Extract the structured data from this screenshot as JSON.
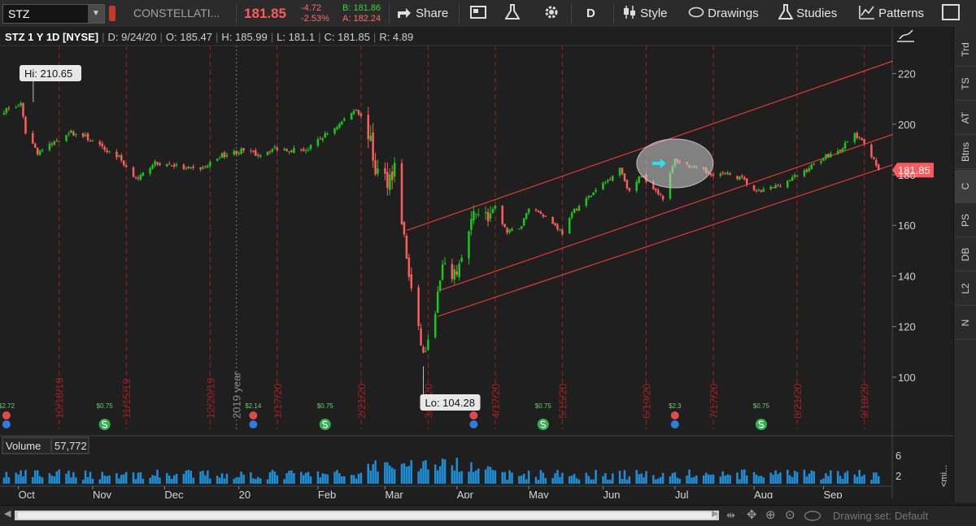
{
  "toolbar": {
    "symbol": "STZ",
    "description": "CONSTELLATI...",
    "last_price": "181.85",
    "change": "-4.72",
    "change_pct": "-2.53%",
    "bid": "B: 181.86",
    "ask": "A: 182.24",
    "share_label": "Share",
    "period_label": "D",
    "style_label": "Style",
    "drawings_label": "Drawings",
    "studies_label": "Studies",
    "patterns_label": "Patterns"
  },
  "colors": {
    "up": "#19c819",
    "down": "#ff5c5c",
    "channel": "#e53935",
    "grid_v": "#9b2020",
    "volume": "#1e8fd6",
    "background": "#1f1f1f"
  },
  "chart_data": {
    "type": "candlestick",
    "header": {
      "title": "STZ 1 Y 1D [NYSE]",
      "date": "D: 9/24/20",
      "open": "O: 185.47",
      "high": "H: 185.99",
      "low": "L: 181.1",
      "close": "C: 181.85",
      "range": "R: 4.89"
    },
    "ylim": [
      90,
      225
    ],
    "y_ticks": [
      "100",
      "120",
      "140",
      "160",
      "180",
      "200",
      "220"
    ],
    "x_months": [
      {
        "label": "Oct",
        "date": "2019-10-01"
      },
      {
        "label": "Nov",
        "date": "2019-11-01"
      },
      {
        "label": "Dec",
        "date": "2019-12-01"
      },
      {
        "label": "20",
        "date": "2020-01-01"
      },
      {
        "label": "Feb",
        "date": "2020-02-03"
      },
      {
        "label": "Mar",
        "date": "2020-03-02"
      },
      {
        "label": "Apr",
        "date": "2020-04-01"
      },
      {
        "label": "May",
        "date": "2020-05-01"
      },
      {
        "label": "Jun",
        "date": "2020-06-01"
      },
      {
        "label": "Jul",
        "date": "2020-07-01"
      },
      {
        "label": "Aug",
        "date": "2020-08-03"
      },
      {
        "label": "Sep",
        "date": "2020-09-01"
      }
    ],
    "date_markers": [
      {
        "label": "10/18/19",
        "date": "2019-10-18"
      },
      {
        "label": "11/15/19",
        "date": "2019-11-15"
      },
      {
        "label": "12/20/19",
        "date": "2019-12-20"
      },
      {
        "label": "1/17/20",
        "date": "2020-01-17"
      },
      {
        "label": "2/21/20",
        "date": "2020-02-21"
      },
      {
        "label": "3/20/20",
        "date": "2020-03-20"
      },
      {
        "label": "4/17/20",
        "date": "2020-04-17"
      },
      {
        "label": "5/15/20",
        "date": "2020-05-15"
      },
      {
        "label": "6/19/20",
        "date": "2020-06-19"
      },
      {
        "label": "7/17/20",
        "date": "2020-07-17"
      },
      {
        "label": "8/21/20",
        "date": "2020-08-21"
      },
      {
        "label": "9/18/20",
        "date": "2020-09-18"
      }
    ],
    "year_marker": {
      "label": "2019 year",
      "date": "2019-12-31"
    },
    "hi_label": {
      "text": "Hi: 210.65",
      "date": "2019-09-27",
      "value": 210.65
    },
    "lo_label": {
      "text": "Lo: 104.28",
      "date": "2020-03-18",
      "value": 104.28
    },
    "last_price_label": "181.85",
    "close_series": [
      [
        "2019-09-25",
        205.5
      ],
      [
        "2019-10-02",
        207.5
      ],
      [
        "2019-10-04",
        197
      ],
      [
        "2019-10-09",
        189
      ],
      [
        "2019-10-15",
        192
      ],
      [
        "2019-10-22",
        197
      ],
      [
        "2019-10-29",
        195
      ],
      [
        "2019-11-05",
        190.5
      ],
      [
        "2019-11-12",
        187
      ],
      [
        "2019-11-15",
        183
      ],
      [
        "2019-11-20",
        178
      ],
      [
        "2019-11-26",
        184.5
      ],
      [
        "2019-12-04",
        184
      ],
      [
        "2019-12-11",
        182
      ],
      [
        "2019-12-18",
        183
      ],
      [
        "2019-12-24",
        187.5
      ],
      [
        "2020-01-02",
        189.5
      ],
      [
        "2020-01-09",
        188
      ],
      [
        "2020-01-16",
        190.5
      ],
      [
        "2020-01-23",
        190
      ],
      [
        "2020-01-30",
        190
      ],
      [
        "2020-02-05",
        195
      ],
      [
        "2020-02-12",
        200
      ],
      [
        "2020-02-19",
        206.5
      ],
      [
        "2020-02-24",
        197
      ],
      [
        "2020-02-27",
        182
      ],
      [
        "2020-03-03",
        178
      ],
      [
        "2020-03-06",
        183
      ],
      [
        "2020-03-09",
        162
      ],
      [
        "2020-03-12",
        140
      ],
      [
        "2020-03-16",
        118
      ],
      [
        "2020-03-18",
        109
      ],
      [
        "2020-03-20",
        113
      ],
      [
        "2020-03-24",
        132
      ],
      [
        "2020-03-26",
        143
      ],
      [
        "2020-03-31",
        140
      ],
      [
        "2020-04-03",
        147
      ],
      [
        "2020-04-07",
        160
      ],
      [
        "2020-04-09",
        167
      ],
      [
        "2020-04-14",
        163
      ],
      [
        "2020-04-17",
        167
      ],
      [
        "2020-04-22",
        157
      ],
      [
        "2020-04-28",
        160
      ],
      [
        "2020-05-01",
        167
      ],
      [
        "2020-05-06",
        165
      ],
      [
        "2020-05-12",
        160
      ],
      [
        "2020-05-15",
        157
      ],
      [
        "2020-05-20",
        166
      ],
      [
        "2020-05-27",
        172
      ],
      [
        "2020-06-03",
        178
      ],
      [
        "2020-06-08",
        183
      ],
      [
        "2020-06-12",
        173
      ],
      [
        "2020-06-17",
        180
      ],
      [
        "2020-06-22",
        175
      ],
      [
        "2020-06-26",
        171
      ],
      [
        "2020-07-01",
        186
      ],
      [
        "2020-07-07",
        183.5
      ],
      [
        "2020-07-14",
        181
      ],
      [
        "2020-07-17",
        180.5
      ],
      [
        "2020-07-24",
        180
      ],
      [
        "2020-07-29",
        178.5
      ],
      [
        "2020-08-04",
        173
      ],
      [
        "2020-08-11",
        175
      ],
      [
        "2020-08-18",
        178
      ],
      [
        "2020-08-25",
        182
      ],
      [
        "2020-09-01",
        187
      ],
      [
        "2020-09-08",
        190
      ],
      [
        "2020-09-14",
        196
      ],
      [
        "2020-09-18",
        192
      ],
      [
        "2020-09-22",
        186.5
      ],
      [
        "2020-09-24",
        181.85
      ]
    ],
    "channel_lines": [
      {
        "from": [
          "2020-03-11",
          158
        ],
        "to": [
          "2020-09-30",
          225
        ]
      },
      {
        "from": [
          "2020-03-24",
          134
        ],
        "to": [
          "2020-09-30",
          196
        ]
      },
      {
        "from": [
          "2020-03-24",
          124
        ],
        "to": [
          "2020-09-30",
          184
        ]
      }
    ],
    "highlight": {
      "date": "2020-07-01",
      "value": 184.5
    },
    "events": [
      {
        "date": "2019-09-26",
        "text": "$2.72",
        "kind": "earnings"
      },
      {
        "date": "2019-11-06",
        "text": "$0.75",
        "kind": "dividend"
      },
      {
        "date": "2020-01-07",
        "text": "$2.14",
        "kind": "earnings"
      },
      {
        "date": "2020-02-06",
        "text": "$0.75",
        "kind": "dividend"
      },
      {
        "date": "2020-04-08",
        "text": "",
        "kind": "earnings"
      },
      {
        "date": "2020-05-07",
        "text": "$0.75",
        "kind": "dividend"
      },
      {
        "date": "2020-07-01",
        "text": "$2.3",
        "kind": "earnings"
      },
      {
        "date": "2020-08-06",
        "text": "$0.75",
        "kind": "dividend"
      }
    ],
    "volume": {
      "label": "Volume",
      "value": "57,772",
      "ticks": [
        "2",
        "6"
      ],
      "side_label": "<mi..."
    }
  },
  "right_tabs": [
    "Trd",
    "TS",
    "AT",
    "Btns",
    "C",
    "PS",
    "DB",
    "L2",
    "N"
  ],
  "bottom": {
    "drawing_set": "Drawing set: Default"
  }
}
